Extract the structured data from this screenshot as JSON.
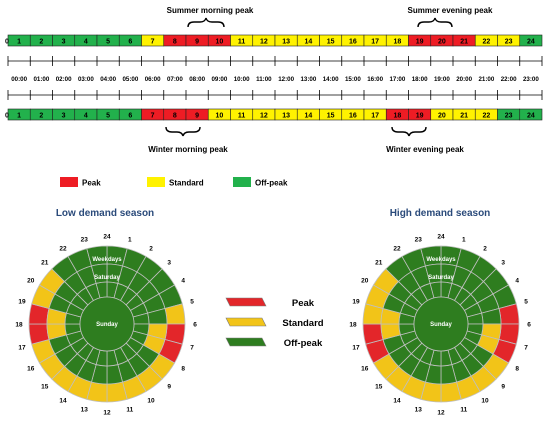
{
  "summer_bar": {
    "hour_labels": [
      "0",
      "1",
      "2",
      "3",
      "4",
      "5",
      "6",
      "7",
      "8",
      "9",
      "10",
      "11",
      "12",
      "13",
      "14",
      "15",
      "16",
      "17",
      "18",
      "19",
      "20",
      "21",
      "22",
      "23",
      "24"
    ],
    "tariffs": [
      "offpeak",
      "offpeak",
      "offpeak",
      "offpeak",
      "offpeak",
      "offpeak",
      "standard",
      "peak",
      "peak",
      "peak",
      "standard",
      "standard",
      "standard",
      "standard",
      "standard",
      "standard",
      "standard",
      "standard",
      "peak",
      "peak",
      "peak",
      "standard",
      "standard",
      "offpeak"
    ],
    "morning_label": "Summer morning peak",
    "evening_label": "Summer evening peak"
  },
  "winter_bar": {
    "hour_labels": [
      "0",
      "1",
      "2",
      "3",
      "4",
      "5",
      "6",
      "7",
      "8",
      "9",
      "10",
      "11",
      "12",
      "13",
      "14",
      "15",
      "16",
      "17",
      "18",
      "19",
      "20",
      "21",
      "22",
      "23",
      "24"
    ],
    "tariffs": [
      "offpeak",
      "offpeak",
      "offpeak",
      "offpeak",
      "offpeak",
      "offpeak",
      "peak",
      "peak",
      "peak",
      "standard",
      "standard",
      "standard",
      "standard",
      "standard",
      "standard",
      "standard",
      "standard",
      "peak",
      "peak",
      "standard",
      "standard",
      "standard",
      "offpeak",
      "offpeak"
    ],
    "morning_label": "Winter morning peak",
    "evening_label": "Winter evening peak"
  },
  "time_labels": [
    "00:00",
    "01:00",
    "02:00",
    "03:00",
    "04:00",
    "05:00",
    "06:00",
    "07:00",
    "08:00",
    "09:00",
    "10:00",
    "11:00",
    "12:00",
    "13:00",
    "14:00",
    "15:00",
    "16:00",
    "17:00",
    "18:00",
    "19:00",
    "20:00",
    "21:00",
    "22:00",
    "23:00"
  ],
  "legend_top": [
    {
      "key": "peak",
      "label": "Peak"
    },
    {
      "key": "standard",
      "label": "Standard"
    },
    {
      "key": "offpeak",
      "label": "Off-peak"
    }
  ],
  "legend_mid": [
    {
      "key": "peak",
      "label": "Peak"
    },
    {
      "key": "standard",
      "label": "Standard"
    },
    {
      "key": "offpeak",
      "label": "Off-peak"
    }
  ],
  "colors": {
    "peak": "#ee1c24",
    "standard": "#fff200",
    "offpeak": "#22b14c",
    "dial_peak": "#e3262a",
    "dial_standard": "#f2c418",
    "dial_offpeak": "#2e7d1f",
    "title": "#2a4a7a"
  },
  "dial_ring_labels": {
    "weekdays": "Weekdays",
    "saturday": "Saturday",
    "sunday": "Sunday"
  },
  "dial_hour_labels": [
    "1",
    "2",
    "3",
    "4",
    "5",
    "6",
    "7",
    "8",
    "9",
    "10",
    "11",
    "12",
    "13",
    "14",
    "15",
    "16",
    "17",
    "18",
    "19",
    "20",
    "21",
    "22",
    "23",
    "24"
  ],
  "low_season": {
    "title": "Low demand season",
    "weekdays": [
      "offpeak",
      "offpeak",
      "offpeak",
      "offpeak",
      "offpeak",
      "standard",
      "peak",
      "peak",
      "standard",
      "standard",
      "standard",
      "standard",
      "standard",
      "standard",
      "standard",
      "standard",
      "standard",
      "peak",
      "peak",
      "standard",
      "standard",
      "offpeak",
      "offpeak",
      "offpeak"
    ],
    "saturday": [
      "offpeak",
      "offpeak",
      "offpeak",
      "offpeak",
      "offpeak",
      "offpeak",
      "standard",
      "standard",
      "offpeak",
      "offpeak",
      "offpeak",
      "offpeak",
      "offpeak",
      "offpeak",
      "offpeak",
      "offpeak",
      "offpeak",
      "standard",
      "standard",
      "offpeak",
      "offpeak",
      "offpeak",
      "offpeak",
      "offpeak"
    ],
    "sunday": [
      "offpeak",
      "offpeak",
      "offpeak",
      "offpeak",
      "offpeak",
      "offpeak",
      "offpeak",
      "offpeak",
      "offpeak",
      "offpeak",
      "offpeak",
      "offpeak",
      "offpeak",
      "offpeak",
      "offpeak",
      "offpeak",
      "offpeak",
      "offpeak",
      "offpeak",
      "offpeak",
      "offpeak",
      "offpeak",
      "offpeak",
      "offpeak"
    ]
  },
  "high_season": {
    "title": "High demand season",
    "weekdays": [
      "offpeak",
      "offpeak",
      "offpeak",
      "offpeak",
      "offpeak",
      "peak",
      "peak",
      "peak",
      "standard",
      "standard",
      "standard",
      "standard",
      "standard",
      "standard",
      "standard",
      "standard",
      "peak",
      "peak",
      "standard",
      "standard",
      "standard",
      "offpeak",
      "offpeak",
      "offpeak"
    ],
    "saturday": [
      "offpeak",
      "offpeak",
      "offpeak",
      "offpeak",
      "offpeak",
      "offpeak",
      "standard",
      "standard",
      "offpeak",
      "offpeak",
      "offpeak",
      "offpeak",
      "offpeak",
      "offpeak",
      "offpeak",
      "offpeak",
      "offpeak",
      "standard",
      "standard",
      "offpeak",
      "offpeak",
      "offpeak",
      "offpeak",
      "offpeak"
    ],
    "sunday": [
      "offpeak",
      "offpeak",
      "offpeak",
      "offpeak",
      "offpeak",
      "offpeak",
      "offpeak",
      "offpeak",
      "offpeak",
      "offpeak",
      "offpeak",
      "offpeak",
      "offpeak",
      "offpeak",
      "offpeak",
      "offpeak",
      "offpeak",
      "offpeak",
      "offpeak",
      "offpeak",
      "offpeak",
      "offpeak",
      "offpeak",
      "offpeak"
    ]
  }
}
